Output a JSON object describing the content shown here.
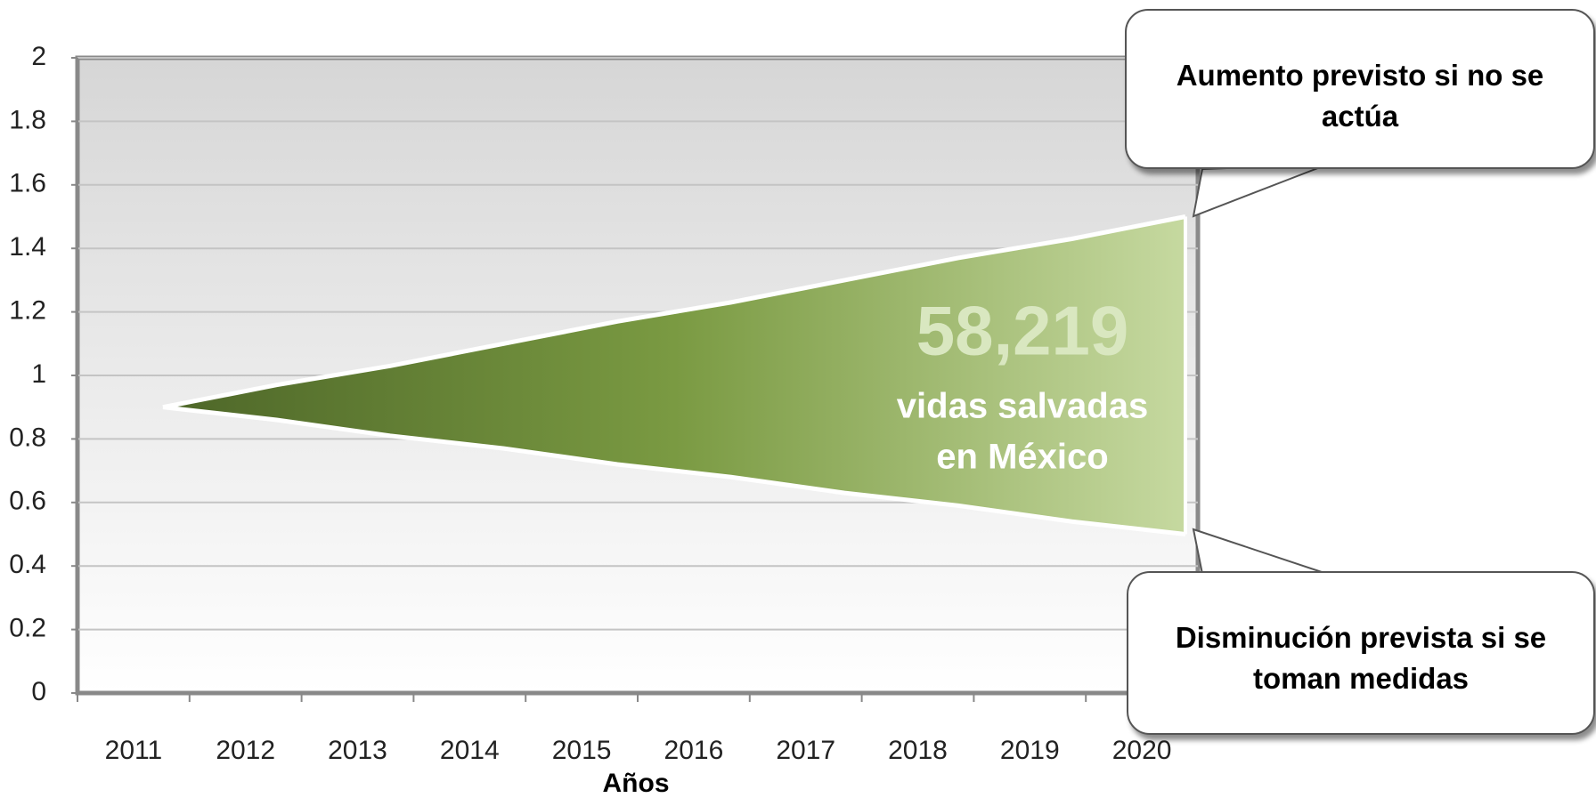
{
  "chart_data": {
    "type": "area-range",
    "categories": [
      "2011",
      "2012",
      "2013",
      "2014",
      "2015",
      "2016",
      "2017",
      "2018",
      "2019",
      "2020"
    ],
    "series": [
      {
        "name": "Aumento previsto si no se actúa",
        "color": "#ffffff",
        "values": [
          0.9,
          0.97,
          1.03,
          1.1,
          1.17,
          1.23,
          1.3,
          1.37,
          1.43,
          1.5
        ]
      },
      {
        "name": "Disminución prevista si se toman medidas",
        "color": "#ffffff",
        "values": [
          0.9,
          0.86,
          0.81,
          0.77,
          0.72,
          0.68,
          0.63,
          0.59,
          0.54,
          0.5
        ]
      }
    ],
    "fill_colors": [
      "#4d6628",
      "#7a9a42",
      "#c6d9a0"
    ],
    "xlabel": "Años",
    "big_number": "58,219",
    "annotation_lines": [
      "vidas salvadas",
      "en México"
    ],
    "ylim": [
      0,
      2
    ],
    "yticks": [
      0,
      0.2,
      0.4,
      0.6,
      0.8,
      1,
      1.2,
      1.4,
      1.6,
      1.8,
      2
    ],
    "grid": true
  }
}
